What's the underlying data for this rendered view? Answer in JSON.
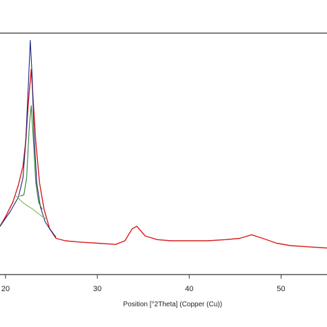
{
  "chart_data": {
    "type": "line",
    "title": "",
    "xlabel": "Position [°2Theta] (Copper (Cu))",
    "ylabel": "",
    "x_ticks": [
      20,
      30,
      40,
      50
    ],
    "xlim": [
      19.4,
      55.0
    ],
    "ylim": [
      0,
      100
    ],
    "grid": false,
    "legend": "none",
    "series": [
      {
        "color": "#d81b1b",
        "points": [
          [
            19.4,
            20
          ],
          [
            20.0,
            24
          ],
          [
            20.8,
            30
          ],
          [
            21.4,
            37
          ],
          [
            21.9,
            45
          ],
          [
            22.2,
            55
          ],
          [
            22.5,
            72
          ],
          [
            22.8,
            85
          ],
          [
            23.0,
            73
          ],
          [
            23.3,
            55
          ],
          [
            23.7,
            38
          ],
          [
            24.2,
            27
          ],
          [
            24.8,
            19
          ],
          [
            25.5,
            15
          ],
          [
            26.5,
            14
          ],
          [
            28.0,
            13.5
          ],
          [
            30.0,
            13
          ],
          [
            32.0,
            12.5
          ],
          [
            33.0,
            14
          ],
          [
            33.8,
            19
          ],
          [
            34.3,
            20
          ],
          [
            35.2,
            16
          ],
          [
            36.5,
            14.5
          ],
          [
            38.0,
            14
          ],
          [
            40.0,
            14
          ],
          [
            42.0,
            14
          ],
          [
            44.0,
            14.5
          ],
          [
            45.5,
            15
          ],
          [
            46.8,
            16.5
          ],
          [
            48.0,
            15
          ],
          [
            49.5,
            13
          ],
          [
            51.0,
            12
          ],
          [
            53.0,
            11.5
          ],
          [
            55.0,
            11
          ]
        ]
      },
      {
        "color": "#1a237e",
        "points": [
          [
            19.4,
            20
          ],
          [
            20.5,
            26
          ],
          [
            21.4,
            32
          ],
          [
            21.9,
            40
          ],
          [
            22.2,
            55
          ],
          [
            22.5,
            80
          ],
          [
            22.7,
            97
          ],
          [
            22.9,
            82
          ],
          [
            23.1,
            58
          ],
          [
            23.4,
            38
          ],
          [
            23.8,
            28
          ],
          [
            24.3,
            22
          ],
          [
            24.8,
            19
          ],
          [
            25.5,
            15.5
          ]
        ]
      },
      {
        "color": "#2e7d32",
        "points": [
          [
            21.6,
            32.5
          ],
          [
            22.0,
            33
          ],
          [
            22.3,
            40
          ],
          [
            22.6,
            62
          ],
          [
            22.8,
            70
          ],
          [
            23.0,
            58
          ],
          [
            23.3,
            38
          ],
          [
            23.6,
            30
          ],
          [
            24.0,
            27
          ]
        ]
      },
      {
        "color": "#7cb342",
        "points": [
          [
            21.0,
            33
          ],
          [
            22.0,
            29.5
          ],
          [
            23.0,
            27
          ],
          [
            24.0,
            24
          ],
          [
            24.5,
            23
          ]
        ]
      }
    ]
  }
}
